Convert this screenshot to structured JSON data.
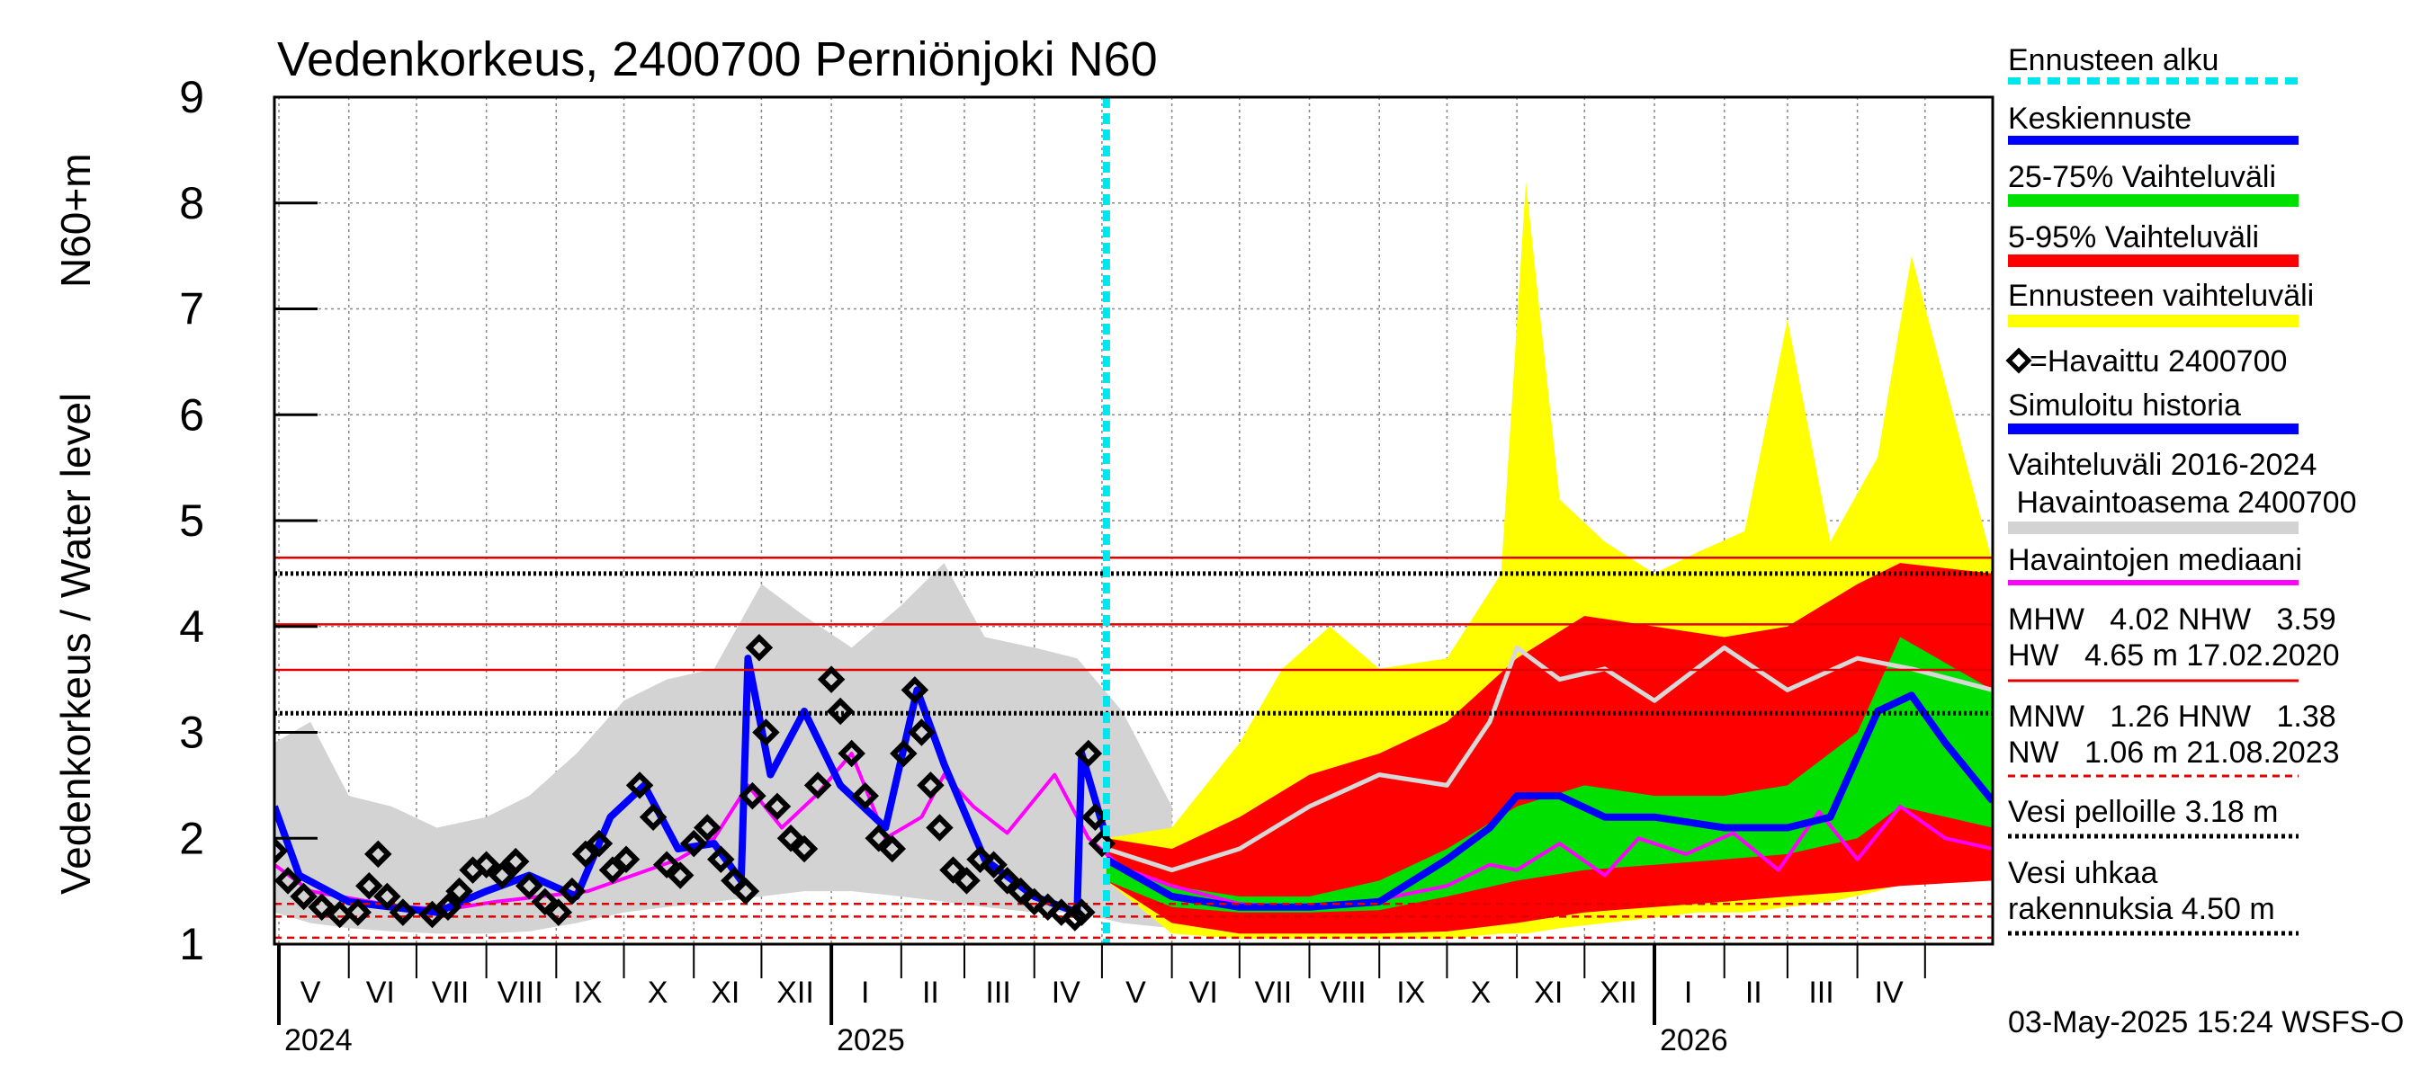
{
  "chart_data": {
    "type": "line",
    "title": "Vedenkorkeus, 2400700 Perniönjoki N60",
    "ylabel_main": "Vedenkorkeus / Water level",
    "ylabel_unit": "N60+m",
    "ylim": [
      1,
      9
    ],
    "yticks": [
      "1",
      "2",
      "3",
      "4",
      "5",
      "6",
      "7",
      "8",
      "9"
    ],
    "x_start": "2024-04-29",
    "x_end": "2026-05-31",
    "forecast_start": "2025-05-03",
    "month_labels": [
      {
        "label": "V",
        "date": "2024-05-15"
      },
      {
        "label": "VI",
        "date": "2024-06-15"
      },
      {
        "label": "VII",
        "date": "2024-07-16"
      },
      {
        "label": "VIII",
        "date": "2024-08-16"
      },
      {
        "label": "IX",
        "date": "2024-09-15"
      },
      {
        "label": "X",
        "date": "2024-10-16"
      },
      {
        "label": "XI",
        "date": "2024-11-15"
      },
      {
        "label": "XII",
        "date": "2024-12-16"
      },
      {
        "label": "I",
        "date": "2025-01-16"
      },
      {
        "label": "II",
        "date": "2025-02-14"
      },
      {
        "label": "III",
        "date": "2025-03-16"
      },
      {
        "label": "IV",
        "date": "2025-04-15"
      },
      {
        "label": "V",
        "date": "2025-05-16"
      },
      {
        "label": "VI",
        "date": "2025-06-15"
      },
      {
        "label": "VII",
        "date": "2025-07-16"
      },
      {
        "label": "VIII",
        "date": "2025-08-16"
      },
      {
        "label": "IX",
        "date": "2025-09-15"
      },
      {
        "label": "X",
        "date": "2025-10-16"
      },
      {
        "label": "XI",
        "date": "2025-11-15"
      },
      {
        "label": "XII",
        "date": "2025-12-16"
      },
      {
        "label": "I",
        "date": "2026-01-16"
      },
      {
        "label": "II",
        "date": "2026-02-14"
      },
      {
        "label": "III",
        "date": "2026-03-16"
      },
      {
        "label": "IV",
        "date": "2026-04-15"
      }
    ],
    "month_boundaries": [
      "2024-05-01",
      "2024-06-01",
      "2024-07-01",
      "2024-08-01",
      "2024-09-01",
      "2024-10-01",
      "2024-11-01",
      "2024-12-01",
      "2025-01-01",
      "2025-02-01",
      "2025-03-01",
      "2025-04-01",
      "2025-05-01",
      "2025-06-01",
      "2025-07-01",
      "2025-08-01",
      "2025-09-01",
      "2025-10-01",
      "2025-11-01",
      "2025-12-01",
      "2026-01-01",
      "2026-02-01",
      "2026-03-01",
      "2026-04-01",
      "2026-05-01"
    ],
    "year_labels": [
      {
        "label": "2024",
        "date": "2024-05-01"
      },
      {
        "label": "2025",
        "date": "2025-01-01"
      },
      {
        "label": "2026",
        "date": "2026-01-01"
      }
    ],
    "reference_lines": [
      {
        "name": "HW",
        "value": 4.65,
        "color": "#e00000",
        "style": "solid"
      },
      {
        "name": "Vesi uhkaa rakennuksia",
        "value": 4.5,
        "color": "#000000",
        "style": "dotted"
      },
      {
        "name": "MHW",
        "value": 4.02,
        "color": "#e00000",
        "style": "solid"
      },
      {
        "name": "NHW",
        "value": 3.59,
        "color": "#e00000",
        "style": "solid"
      },
      {
        "name": "Vesi pelloille",
        "value": 3.18,
        "color": "#000000",
        "style": "dotted"
      },
      {
        "name": "HNW",
        "value": 1.38,
        "color": "#e00000",
        "style": "dashed"
      },
      {
        "name": "MNW",
        "value": 1.26,
        "color": "#e00000",
        "style": "dashed"
      },
      {
        "name": "NW",
        "value": 1.06,
        "color": "#e00000",
        "style": "dashed"
      }
    ],
    "series": [
      {
        "name": "Vaihteluväli 2016-2024 Havaintoasema 2400700",
        "color": "#d3d3d3",
        "kind": "band",
        "dates": [
          "2024-04-29",
          "2024-05-15",
          "2024-06-01",
          "2024-06-20",
          "2024-07-10",
          "2024-08-01",
          "2024-08-20",
          "2024-09-10",
          "2024-10-01",
          "2024-10-20",
          "2024-11-10",
          "2024-12-01",
          "2024-12-20",
          "2025-01-10",
          "2025-02-01",
          "2025-02-20",
          "2025-03-10",
          "2025-04-01",
          "2025-04-20",
          "2025-05-10",
          "2025-06-01"
        ],
        "upper": [
          2.9,
          3.1,
          2.4,
          2.3,
          2.1,
          2.2,
          2.4,
          2.8,
          3.3,
          3.5,
          3.6,
          4.4,
          4.1,
          3.8,
          4.2,
          4.6,
          3.9,
          3.8,
          3.7,
          3.2,
          2.3
        ],
        "lower": [
          1.3,
          1.2,
          1.15,
          1.12,
          1.1,
          1.1,
          1.12,
          1.2,
          1.3,
          1.35,
          1.4,
          1.45,
          1.5,
          1.5,
          1.45,
          1.4,
          1.35,
          1.3,
          1.3,
          1.2,
          1.15
        ]
      },
      {
        "name": "Ennusteen vaihteluväli",
        "color": "#ffff00",
        "kind": "band",
        "dates": [
          "2025-05-03",
          "2025-06-01",
          "2025-07-01",
          "2025-07-20",
          "2025-08-10",
          "2025-09-01",
          "2025-10-01",
          "2025-10-25",
          "2025-11-05",
          "2025-11-20",
          "2025-12-10",
          "2026-01-01",
          "2026-01-20",
          "2026-02-10",
          "2026-03-01",
          "2026-03-20",
          "2026-04-10",
          "2026-04-25",
          "2026-05-31"
        ],
        "upper": [
          2.0,
          2.1,
          2.9,
          3.6,
          4.0,
          3.6,
          3.7,
          4.5,
          8.2,
          5.2,
          4.8,
          4.5,
          4.7,
          4.9,
          6.9,
          4.8,
          5.6,
          7.5,
          4.6
        ],
        "lower": [
          1.6,
          1.1,
          1.05,
          1.05,
          1.05,
          1.05,
          1.05,
          1.1,
          1.1,
          1.15,
          1.2,
          1.25,
          1.3,
          1.3,
          1.35,
          1.4,
          1.5,
          1.6,
          1.7
        ]
      },
      {
        "name": "5-95% Vaihteluväli",
        "color": "#ff0000",
        "kind": "band",
        "dates": [
          "2025-05-03",
          "2025-06-01",
          "2025-07-01",
          "2025-08-01",
          "2025-09-01",
          "2025-10-01",
          "2025-11-01",
          "2025-12-01",
          "2026-01-01",
          "2026-02-01",
          "2026-03-01",
          "2026-04-01",
          "2026-04-20",
          "2026-05-31"
        ],
        "upper": [
          2.0,
          1.9,
          2.2,
          2.6,
          2.8,
          3.1,
          3.7,
          4.1,
          4.0,
          3.9,
          4.0,
          4.4,
          4.6,
          4.5
        ],
        "lower": [
          1.6,
          1.2,
          1.1,
          1.1,
          1.1,
          1.12,
          1.2,
          1.3,
          1.35,
          1.4,
          1.45,
          1.5,
          1.55,
          1.6
        ]
      },
      {
        "name": "25-75% Vaihteluväli",
        "color": "#00e000",
        "kind": "band",
        "dates": [
          "2025-05-03",
          "2025-06-01",
          "2025-07-01",
          "2025-08-01",
          "2025-09-01",
          "2025-10-01",
          "2025-11-01",
          "2025-12-01",
          "2026-01-01",
          "2026-02-01",
          "2026-03-01",
          "2026-04-01",
          "2026-04-20",
          "2026-05-31"
        ],
        "upper": [
          1.75,
          1.55,
          1.45,
          1.45,
          1.6,
          1.9,
          2.3,
          2.5,
          2.4,
          2.4,
          2.5,
          3.0,
          3.9,
          3.4
        ],
        "lower": [
          1.6,
          1.35,
          1.3,
          1.3,
          1.32,
          1.45,
          1.6,
          1.7,
          1.75,
          1.8,
          1.85,
          2.0,
          2.3,
          2.1
        ]
      },
      {
        "name": "Havaintojen mediaani",
        "color": "#ff00ff",
        "kind": "line",
        "dates": [
          "2024-04-29",
          "2024-05-15",
          "2024-06-05",
          "2024-06-25",
          "2024-07-15",
          "2024-08-05",
          "2024-08-25",
          "2024-09-15",
          "2024-10-05",
          "2024-10-25",
          "2024-11-10",
          "2024-11-25",
          "2024-12-10",
          "2024-12-25",
          "2025-01-10",
          "2025-01-25",
          "2025-02-10",
          "2025-02-20",
          "2025-03-05",
          "2025-03-20",
          "2025-04-10",
          "2025-04-25",
          "2025-05-10",
          "2025-06-01",
          "2025-07-01",
          "2025-08-01",
          "2025-09-01",
          "2025-10-01",
          "2025-10-20",
          "2025-11-01",
          "2025-11-20",
          "2025-12-10",
          "2025-12-25",
          "2026-01-15",
          "2026-02-05",
          "2026-02-25",
          "2026-03-15",
          "2026-04-01",
          "2026-04-20",
          "2026-05-10",
          "2026-05-31"
        ],
        "values": [
          1.75,
          1.5,
          1.42,
          1.35,
          1.33,
          1.4,
          1.45,
          1.5,
          1.65,
          1.8,
          2.0,
          2.5,
          2.1,
          2.4,
          2.8,
          2.0,
          2.2,
          2.6,
          2.3,
          2.05,
          2.6,
          2.0,
          1.72,
          1.55,
          1.38,
          1.35,
          1.42,
          1.55,
          1.75,
          1.7,
          1.95,
          1.65,
          2.0,
          1.85,
          2.05,
          1.7,
          2.25,
          1.8,
          2.3,
          2.0,
          1.9
        ]
      },
      {
        "name": "Simuloitu historia",
        "color": "#0000ff",
        "kind": "line",
        "dates": [
          "2024-04-29",
          "2024-05-10",
          "2024-06-01",
          "2024-06-20",
          "2024-07-10",
          "2024-08-01",
          "2024-08-20",
          "2024-09-10",
          "2024-09-25",
          "2024-10-10",
          "2024-10-25",
          "2024-11-10",
          "2024-11-22",
          "2024-11-25",
          "2024-12-05",
          "2024-12-20",
          "2025-01-05",
          "2025-01-25",
          "2025-02-08",
          "2025-02-20",
          "2025-03-10",
          "2025-04-01",
          "2025-04-20",
          "2025-04-22",
          "2025-05-03"
        ],
        "values": [
          2.3,
          1.65,
          1.4,
          1.35,
          1.3,
          1.5,
          1.65,
          1.45,
          2.2,
          2.5,
          1.9,
          1.95,
          1.6,
          3.7,
          2.6,
          3.2,
          2.5,
          2.1,
          3.4,
          2.7,
          1.8,
          1.45,
          1.3,
          2.8,
          2.0
        ]
      },
      {
        "name": "Keskiennuste",
        "color": "#0000ff",
        "kind": "line",
        "dates": [
          "2025-05-03",
          "2025-06-01",
          "2025-07-01",
          "2025-08-01",
          "2025-09-01",
          "2025-10-01",
          "2025-10-20",
          "2025-11-01",
          "2025-11-20",
          "2025-12-10",
          "2026-01-01",
          "2026-02-01",
          "2026-03-01",
          "2026-03-20",
          "2026-04-10",
          "2026-04-25",
          "2026-05-10",
          "2026-05-31"
        ],
        "values": [
          1.8,
          1.45,
          1.35,
          1.35,
          1.4,
          1.8,
          2.1,
          2.4,
          2.4,
          2.2,
          2.2,
          2.1,
          2.1,
          2.2,
          3.2,
          3.35,
          2.9,
          2.35
        ]
      },
      {
        "name": "Havaittu 2400700 (grey upper curve)",
        "color": "#d8d8d8",
        "kind": "line",
        "dates": [
          "2025-05-03",
          "2025-06-01",
          "2025-07-01",
          "2025-08-01",
          "2025-09-01",
          "2025-10-01",
          "2025-10-20",
          "2025-11-01",
          "2025-11-20",
          "2025-12-10",
          "2026-01-01",
          "2026-02-01",
          "2026-03-01",
          "2026-04-01",
          "2026-04-25",
          "2026-05-31"
        ],
        "values": [
          1.9,
          1.7,
          1.9,
          2.3,
          2.6,
          2.5,
          3.1,
          3.8,
          3.5,
          3.6,
          3.3,
          3.8,
          3.4,
          3.7,
          3.6,
          3.4
        ]
      },
      {
        "name": "=Havaittu 2400700",
        "color": "#000000",
        "kind": "markers",
        "dates": [
          "2024-04-29",
          "2024-05-05",
          "2024-05-12",
          "2024-05-20",
          "2024-05-28",
          "2024-06-05",
          "2024-06-10",
          "2024-06-14",
          "2024-06-18",
          "2024-06-25",
          "2024-07-08",
          "2024-07-15",
          "2024-07-20",
          "2024-07-26",
          "2024-08-01",
          "2024-08-08",
          "2024-08-14",
          "2024-08-20",
          "2024-08-27",
          "2024-09-02",
          "2024-09-08",
          "2024-09-14",
          "2024-09-20",
          "2024-09-26",
          "2024-10-02",
          "2024-10-08",
          "2024-10-14",
          "2024-10-20",
          "2024-10-26",
          "2024-11-01",
          "2024-11-07",
          "2024-11-13",
          "2024-11-19",
          "2024-11-24",
          "2024-11-27",
          "2024-11-30",
          "2024-12-03",
          "2024-12-08",
          "2024-12-14",
          "2024-12-20",
          "2024-12-26",
          "2025-01-01",
          "2025-01-05",
          "2025-01-10",
          "2025-01-16",
          "2025-01-22",
          "2025-01-28",
          "2025-02-02",
          "2025-02-07",
          "2025-02-10",
          "2025-02-14",
          "2025-02-18",
          "2025-02-24",
          "2025-03-02",
          "2025-03-08",
          "2025-03-14",
          "2025-03-20",
          "2025-03-26",
          "2025-04-01",
          "2025-04-07",
          "2025-04-13",
          "2025-04-19",
          "2025-04-22",
          "2025-04-25",
          "2025-04-28",
          "2025-05-01"
        ],
        "values": [
          1.88,
          1.6,
          1.45,
          1.35,
          1.28,
          1.3,
          1.55,
          1.85,
          1.45,
          1.3,
          1.28,
          1.35,
          1.5,
          1.7,
          1.75,
          1.65,
          1.78,
          1.55,
          1.4,
          1.3,
          1.5,
          1.85,
          1.95,
          1.7,
          1.8,
          2.5,
          2.2,
          1.75,
          1.65,
          1.95,
          2.1,
          1.8,
          1.6,
          1.5,
          2.4,
          3.8,
          3.0,
          2.3,
          2.0,
          1.9,
          2.5,
          3.5,
          3.2,
          2.8,
          2.4,
          2.0,
          1.9,
          2.8,
          3.4,
          3.0,
          2.5,
          2.1,
          1.7,
          1.6,
          1.8,
          1.75,
          1.6,
          1.5,
          1.4,
          1.35,
          1.3,
          1.25,
          1.3,
          2.8,
          2.2,
          1.95
        ]
      }
    ]
  },
  "legend": {
    "forecast_start": "Ennusteen alku",
    "mean_forecast": "Keskiennuste",
    "band_25_75": "25-75% Vaihteluväli",
    "band_5_95": "5-95% Vaihteluväli",
    "forecast_range": "Ennusteen vaihteluväli",
    "observed": "=Havaittu 2400700",
    "simulated": "Simuloitu historia",
    "hist_range_1": "Vaihteluväli 2016-2024",
    "hist_range_2": " Havaintoasema 2400700",
    "median": "Havaintojen mediaani",
    "stats1a": "MHW   4.02 NHW   3.59",
    "stats1b": "HW   4.65 m 17.02.2020",
    "stats2a": "MNW   1.26 HNW   1.38",
    "stats2b": "NW   1.06 m 21.08.2023",
    "field": "Vesi pelloille 3.18 m",
    "build1": "Vesi uhkaa",
    "build2": "rakennuksia 4.50 m"
  },
  "footer": {
    "timestamp": "03-May-2025 15:24 WSFS-O"
  },
  "colors": {
    "forecast_line": "#00e5ee",
    "red": "#ff0000",
    "green": "#00e000",
    "yellow": "#ffff00",
    "blue": "#0000ff",
    "magenta": "#ff00ff",
    "grey": "#d3d3d3"
  }
}
